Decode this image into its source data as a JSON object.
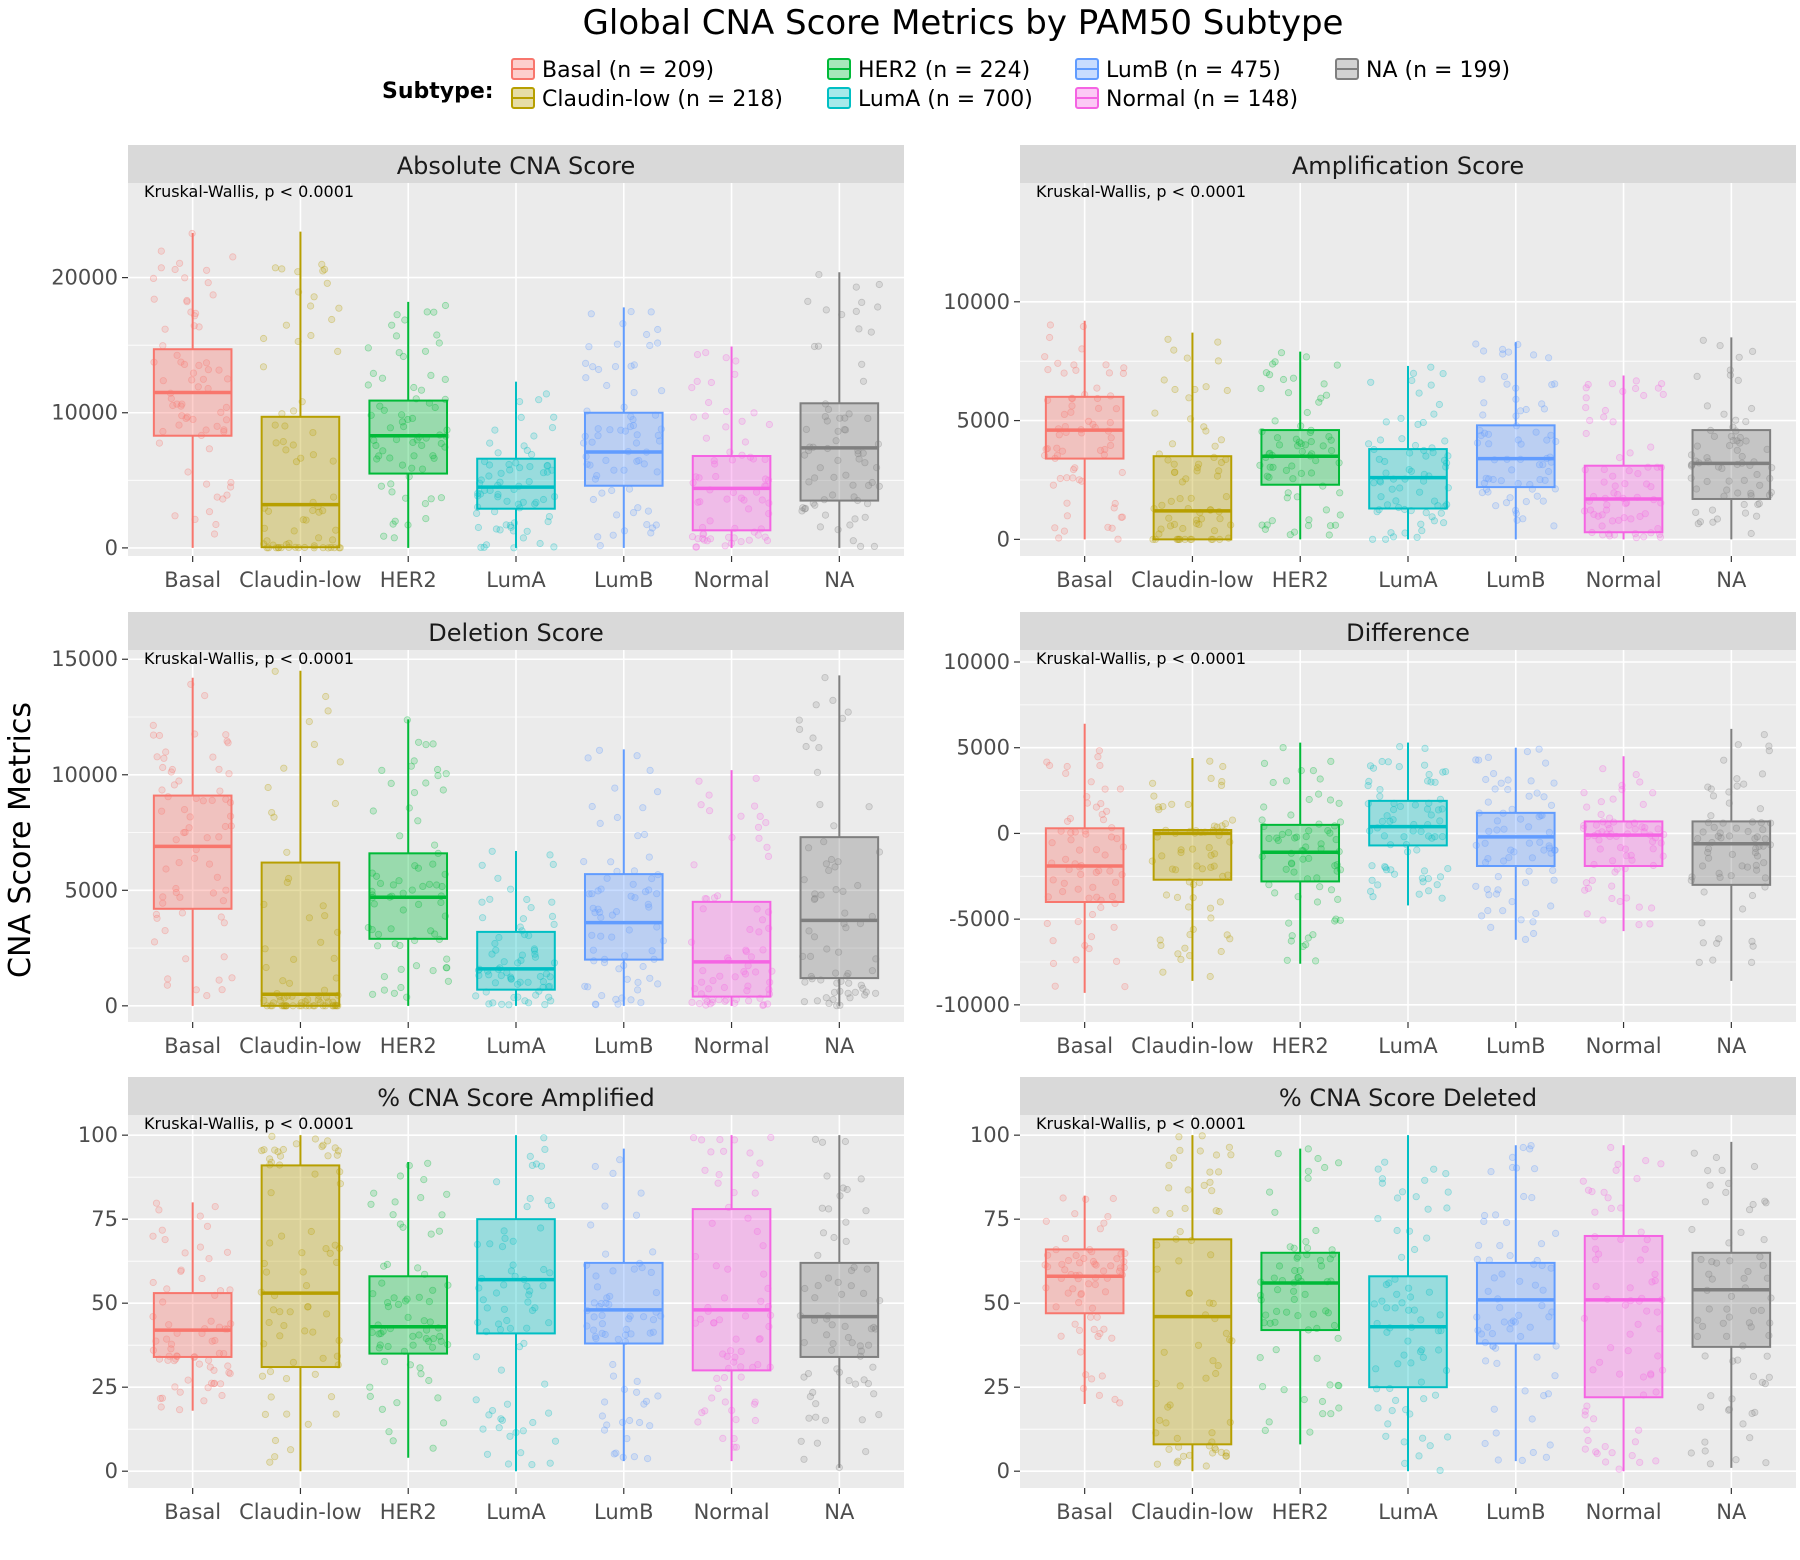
{
  "title": "Global CNA Score Metrics by PAM50 Subtype",
  "ylabel": "CNA Score Metrics",
  "legend": {
    "title": "Subtype:",
    "items": [
      {
        "label": "Basal  (n = 209)",
        "color": "#F8766D"
      },
      {
        "label": "Claudin-low  (n = 218)",
        "color": "#B79F00"
      },
      {
        "label": "HER2  (n = 224)",
        "color": "#00BA38"
      },
      {
        "label": "LumA  (n = 700)",
        "color": "#00BFC4"
      },
      {
        "label": "LumB  (n = 475)",
        "color": "#619CFF"
      },
      {
        "label": "Normal  (n = 148)",
        "color": "#F564E3"
      },
      {
        "label": "NA  (n = 199)",
        "color": "#7F7F7F"
      }
    ]
  },
  "chart_data": [
    {
      "type": "box",
      "title": "Absolute CNA Score",
      "annotation": "Kruskal-Wallis,  p < 0.0001",
      "categories": [
        "Basal",
        "Claudin-low",
        "HER2",
        "LumA",
        "LumB",
        "Normal",
        "NA"
      ],
      "ylim": [
        -600,
        27000
      ],
      "yticks": [
        0,
        10000,
        20000
      ],
      "ytick_labels": [
        "0",
        "10000",
        "20000"
      ],
      "boxes": [
        {
          "q1": 8300,
          "median": 11500,
          "q3": 14700,
          "lower": 0,
          "upper": 23300
        },
        {
          "q1": 50,
          "median": 3200,
          "q3": 9700,
          "lower": 0,
          "upper": 23400
        },
        {
          "q1": 5500,
          "median": 8300,
          "q3": 10900,
          "lower": 0,
          "upper": 18200
        },
        {
          "q1": 2900,
          "median": 4500,
          "q3": 6600,
          "lower": 0,
          "upper": 12300
        },
        {
          "q1": 4600,
          "median": 7100,
          "q3": 10000,
          "lower": 0,
          "upper": 17800
        },
        {
          "q1": 1300,
          "median": 4400,
          "q3": 6800,
          "lower": 0,
          "upper": 14900
        },
        {
          "q1": 3500,
          "median": 7400,
          "q3": 10700,
          "lower": 0,
          "upper": 20400
        }
      ]
    },
    {
      "type": "box",
      "title": "Amplification Score",
      "annotation": "Kruskal-Wallis,  p < 0.0001",
      "categories": [
        "Basal",
        "Claudin-low",
        "HER2",
        "LumA",
        "LumB",
        "Normal",
        "NA"
      ],
      "ylim": [
        -700,
        15000
      ],
      "yticks": [
        0,
        5000,
        10000
      ],
      "ytick_labels": [
        "0",
        "5000",
        "10000"
      ],
      "boxes": [
        {
          "q1": 3400,
          "median": 4600,
          "q3": 6000,
          "lower": 0,
          "upper": 9200
        },
        {
          "q1": 0,
          "median": 1200,
          "q3": 3500,
          "lower": 0,
          "upper": 8700
        },
        {
          "q1": 2300,
          "median": 3500,
          "q3": 4600,
          "lower": 0,
          "upper": 7900
        },
        {
          "q1": 1300,
          "median": 2600,
          "q3": 3800,
          "lower": 0,
          "upper": 7300
        },
        {
          "q1": 2200,
          "median": 3400,
          "q3": 4800,
          "lower": 0,
          "upper": 8300
        },
        {
          "q1": 300,
          "median": 1700,
          "q3": 3100,
          "lower": 0,
          "upper": 6900
        },
        {
          "q1": 1700,
          "median": 3200,
          "q3": 4600,
          "lower": 0,
          "upper": 8500
        }
      ]
    },
    {
      "type": "box",
      "title": "Deletion Score",
      "annotation": "Kruskal-Wallis,  p < 0.0001",
      "categories": [
        "Basal",
        "Claudin-low",
        "HER2",
        "LumA",
        "LumB",
        "Normal",
        "NA"
      ],
      "ylim": [
        -700,
        15400
      ],
      "yticks": [
        0,
        5000,
        10000,
        15000
      ],
      "ytick_labels": [
        "0",
        "5000",
        "10000",
        "15000"
      ],
      "boxes": [
        {
          "q1": 4200,
          "median": 6900,
          "q3": 9100,
          "lower": 0,
          "upper": 14200
        },
        {
          "q1": 0,
          "median": 500,
          "q3": 6200,
          "lower": 0,
          "upper": 14500
        },
        {
          "q1": 2900,
          "median": 4700,
          "q3": 6600,
          "lower": 0,
          "upper": 12400
        },
        {
          "q1": 700,
          "median": 1600,
          "q3": 3200,
          "lower": 0,
          "upper": 6700
        },
        {
          "q1": 2000,
          "median": 3600,
          "q3": 5700,
          "lower": 0,
          "upper": 11100
        },
        {
          "q1": 400,
          "median": 1900,
          "q3": 4500,
          "lower": 0,
          "upper": 10200
        },
        {
          "q1": 1200,
          "median": 3700,
          "q3": 7300,
          "lower": 0,
          "upper": 14300
        }
      ]
    },
    {
      "type": "box",
      "title": "Difference",
      "annotation": "Kruskal-Wallis,  p < 0.0001",
      "categories": [
        "Basal",
        "Claudin-low",
        "HER2",
        "LumA",
        "LumB",
        "Normal",
        "NA"
      ],
      "ylim": [
        -11000,
        10700
      ],
      "yticks": [
        -10000,
        -5000,
        0,
        5000,
        10000
      ],
      "ytick_labels": [
        "-10000",
        "-5000",
        "0",
        "5000",
        "10000"
      ],
      "boxes": [
        {
          "q1": -4000,
          "median": -1900,
          "q3": 300,
          "lower": -9300,
          "upper": 6400
        },
        {
          "q1": -2700,
          "median": 0,
          "q3": 200,
          "lower": -8600,
          "upper": 4400
        },
        {
          "q1": -2800,
          "median": -1100,
          "q3": 500,
          "lower": -7600,
          "upper": 5300
        },
        {
          "q1": -700,
          "median": 400,
          "q3": 1900,
          "lower": -4200,
          "upper": 5300
        },
        {
          "q1": -1900,
          "median": -200,
          "q3": 1200,
          "lower": -6200,
          "upper": 5000
        },
        {
          "q1": -1900,
          "median": -100,
          "q3": 700,
          "lower": -5700,
          "upper": 4500
        },
        {
          "q1": -3000,
          "median": -600,
          "q3": 700,
          "lower": -8600,
          "upper": 6100
        }
      ]
    },
    {
      "type": "box",
      "title": "% CNA Score Amplified",
      "annotation": "Kruskal-Wallis,  p < 0.0001",
      "categories": [
        "Basal",
        "Claudin-low",
        "HER2",
        "LumA",
        "LumB",
        "Normal",
        "NA"
      ],
      "ylim": [
        -5,
        106
      ],
      "yticks": [
        0,
        25,
        50,
        75,
        100
      ],
      "ytick_labels": [
        "0",
        "25",
        "50",
        "75",
        "100"
      ],
      "boxes": [
        {
          "q1": 34,
          "median": 42,
          "q3": 53,
          "lower": 18,
          "upper": 80
        },
        {
          "q1": 31,
          "median": 53,
          "q3": 91,
          "lower": 0,
          "upper": 100
        },
        {
          "q1": 35,
          "median": 43,
          "q3": 58,
          "lower": 4,
          "upper": 92
        },
        {
          "q1": 41,
          "median": 57,
          "q3": 75,
          "lower": 0,
          "upper": 100
        },
        {
          "q1": 38,
          "median": 48,
          "q3": 62,
          "lower": 3,
          "upper": 96
        },
        {
          "q1": 30,
          "median": 48,
          "q3": 78,
          "lower": 3,
          "upper": 100
        },
        {
          "q1": 34,
          "median": 46,
          "q3": 62,
          "lower": 1,
          "upper": 100
        }
      ]
    },
    {
      "type": "box",
      "title": "% CNA Score Deleted",
      "annotation": "Kruskal-Wallis,  p < 0.0001",
      "categories": [
        "Basal",
        "Claudin-low",
        "HER2",
        "LumA",
        "LumB",
        "Normal",
        "NA"
      ],
      "ylim": [
        -5,
        106
      ],
      "yticks": [
        0,
        25,
        50,
        75,
        100
      ],
      "ytick_labels": [
        "0",
        "25",
        "50",
        "75",
        "100"
      ],
      "boxes": [
        {
          "q1": 47,
          "median": 58,
          "q3": 66,
          "lower": 20,
          "upper": 82
        },
        {
          "q1": 8,
          "median": 46,
          "q3": 69,
          "lower": 0,
          "upper": 100
        },
        {
          "q1": 42,
          "median": 56,
          "q3": 65,
          "lower": 8,
          "upper": 96
        },
        {
          "q1": 25,
          "median": 43,
          "q3": 58,
          "lower": 0,
          "upper": 100
        },
        {
          "q1": 38,
          "median": 51,
          "q3": 62,
          "lower": 3,
          "upper": 97
        },
        {
          "q1": 22,
          "median": 51,
          "q3": 70,
          "lower": 0,
          "upper": 97
        },
        {
          "q1": 37,
          "median": 54,
          "q3": 65,
          "lower": 1,
          "upper": 98
        }
      ]
    }
  ]
}
